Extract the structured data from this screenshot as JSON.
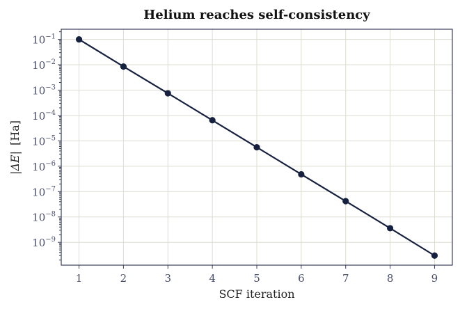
{
  "chart_data": {
    "type": "line",
    "title": "Helium reaches self-consistency",
    "xlabel": "SCF iteration",
    "ylabel_prefix": "|ΔE|",
    "ylabel_unit": "[Ha]",
    "y_scale": "log",
    "xlim": [
      0.6,
      9.4
    ],
    "ylim_log10": [
      -9.9,
      -0.6
    ],
    "grid": true,
    "x_ticks": [
      1,
      2,
      3,
      4,
      5,
      6,
      7,
      8,
      9
    ],
    "x_tick_labels": [
      "1",
      "2",
      "3",
      "4",
      "5",
      "6",
      "7",
      "8",
      "9"
    ],
    "y_tick_exponents": [
      -1,
      -2,
      -3,
      -4,
      -5,
      -6,
      -7,
      -8,
      -9
    ],
    "y_tick_labels": [
      {
        "base": "10",
        "exp": "−1"
      },
      {
        "base": "10",
        "exp": "−2"
      },
      {
        "base": "10",
        "exp": "−3"
      },
      {
        "base": "10",
        "exp": "−4"
      },
      {
        "base": "10",
        "exp": "−5"
      },
      {
        "base": "10",
        "exp": "−6"
      },
      {
        "base": "10",
        "exp": "−7"
      },
      {
        "base": "10",
        "exp": "−8"
      },
      {
        "base": "10",
        "exp": "−9"
      }
    ],
    "series": [
      {
        "color": "#16203f",
        "x": [
          1,
          2,
          3,
          4,
          5,
          6,
          7,
          8,
          9
        ],
        "y": [
          0.1,
          0.0085,
          0.00075,
          6.5e-05,
          5.6e-06,
          4.8e-07,
          4.2e-08,
          3.6e-09,
          3e-10
        ]
      }
    ]
  }
}
